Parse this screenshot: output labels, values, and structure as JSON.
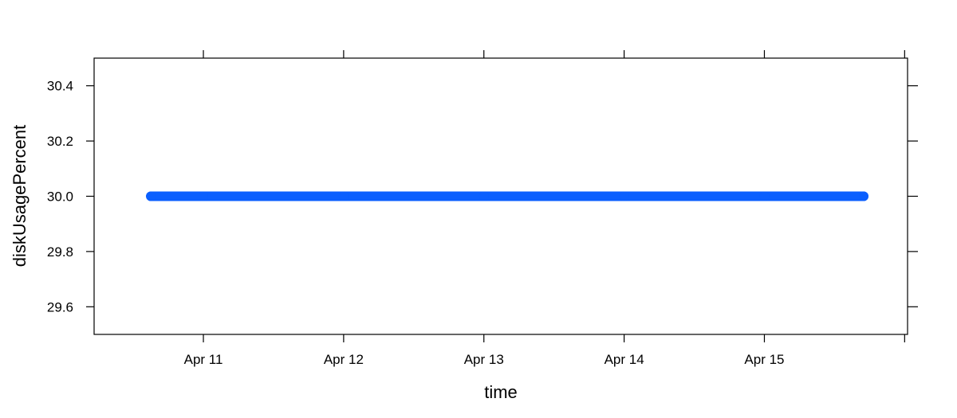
{
  "chart_data": {
    "type": "line",
    "title": "",
    "xlabel": "time",
    "ylabel": "diskUsagePercent",
    "x_ticks": [
      {
        "value": "2024-04-11",
        "label": "Apr 11"
      },
      {
        "value": "2024-04-12",
        "label": "Apr 12"
      },
      {
        "value": "2024-04-13",
        "label": "Apr 13"
      },
      {
        "value": "2024-04-14",
        "label": "Apr 14"
      },
      {
        "value": "2024-04-15",
        "label": "Apr 15"
      },
      {
        "value": "2024-04-16",
        "label": ""
      }
    ],
    "y_ticks": [
      {
        "value": 29.6,
        "label": "29.6"
      },
      {
        "value": 29.8,
        "label": "29.8"
      },
      {
        "value": 30.0,
        "label": "30.0"
      },
      {
        "value": 30.2,
        "label": "30.2"
      },
      {
        "value": 30.4,
        "label": "30.4"
      }
    ],
    "xlim": [
      "2024-04-10 05:18",
      "2024-04-16 00:30"
    ],
    "ylim": [
      29.5,
      30.5
    ],
    "grid": false,
    "legend": "none",
    "series": [
      {
        "color": "#0b5ffe",
        "points": [
          {
            "x": "2024-04-10 15:00",
            "y": 30.0
          },
          {
            "x": "2024-04-11 00:00",
            "y": 30.0
          },
          {
            "x": "2024-04-12 00:00",
            "y": 30.0
          },
          {
            "x": "2024-04-13 00:00",
            "y": 30.0
          },
          {
            "x": "2024-04-14 00:00",
            "y": 30.0
          },
          {
            "x": "2024-04-15 00:00",
            "y": 30.0
          },
          {
            "x": "2024-04-15 17:00",
            "y": 30.0
          }
        ]
      }
    ]
  }
}
